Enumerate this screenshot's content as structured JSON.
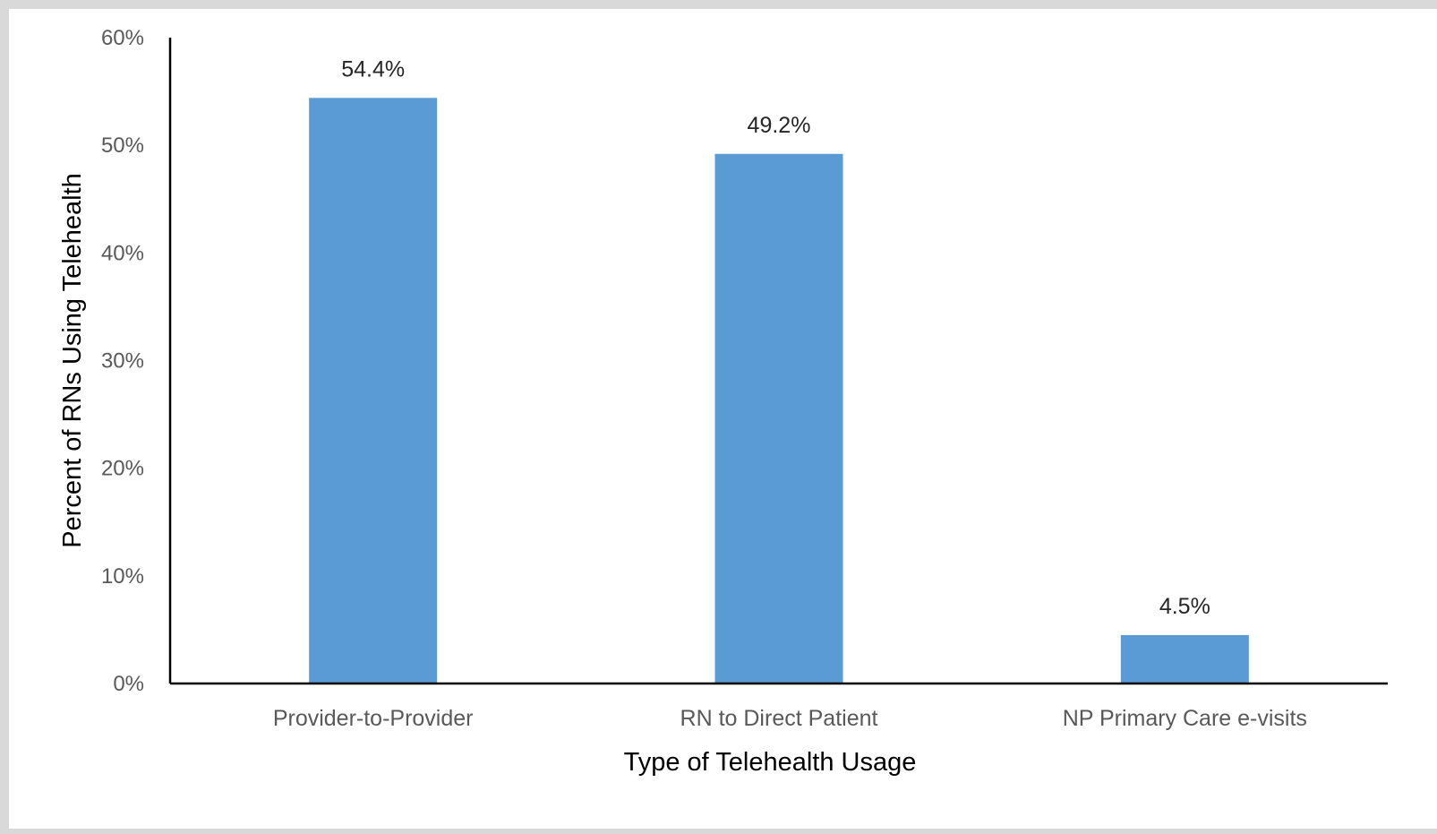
{
  "chart_data": {
    "type": "bar",
    "categories": [
      "Provider-to-Provider",
      "RN to Direct Patient",
      "NP Primary Care e-visits"
    ],
    "values": [
      54.4,
      49.2,
      4.5
    ],
    "data_labels": [
      "54.4%",
      "49.2%",
      "4.5%"
    ],
    "title": "",
    "xlabel": "Type of Telehealth Usage",
    "ylabel": "Percent of RNs Using Telehealth",
    "ylim": [
      0,
      60
    ],
    "yticks": [
      0,
      10,
      20,
      30,
      40,
      50,
      60
    ],
    "ytick_labels": [
      "0%",
      "10%",
      "20%",
      "30%",
      "40%",
      "50%",
      "60%"
    ],
    "grid": false,
    "legend": "none",
    "bar_color": "#5b9bd5",
    "axis_color": "#000000"
  }
}
